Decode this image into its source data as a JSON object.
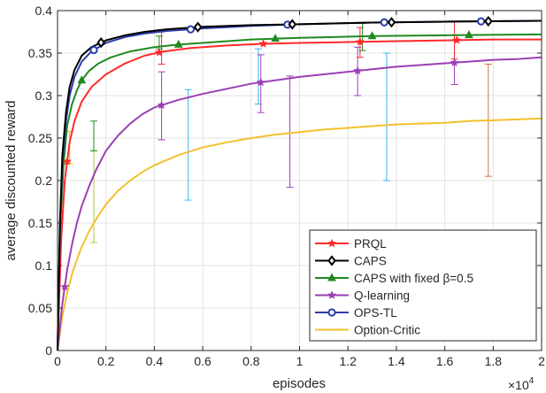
{
  "chart_data": {
    "type": "line",
    "title": "",
    "xlabel": "episodes",
    "ylabel": "average discounted reward",
    "x_multiplier_label": "×10",
    "x_multiplier_exp": "4",
    "xlim": [
      0,
      20000
    ],
    "ylim": [
      0,
      0.4
    ],
    "xticks": [
      0,
      2000,
      4000,
      6000,
      8000,
      10000,
      12000,
      14000,
      16000,
      18000,
      20000
    ],
    "xtick_labels": [
      "0",
      "0.2",
      "0.4",
      "0.6",
      "0.8",
      "1",
      "1.2",
      "1.4",
      "1.6",
      "1.8",
      "2"
    ],
    "yticks": [
      0,
      0.05,
      0.1,
      0.15,
      0.2,
      0.25,
      0.3,
      0.35,
      0.4
    ],
    "ytick_labels": [
      "0",
      "0.05",
      "0.1",
      "0.15",
      "0.2",
      "0.25",
      "0.3",
      "0.35",
      "0.4"
    ],
    "grid": true,
    "legend_position": "bottom-right",
    "series": [
      {
        "name": "PRQL",
        "color": "#ff2a2a",
        "marker": "star",
        "x": [
          0,
          150,
          300,
          500,
          700,
          1000,
          1400,
          2000,
          2800,
          3600,
          4400,
          5500,
          7000,
          8500,
          10000,
          12000,
          14000,
          16000,
          18000,
          20000
        ],
        "y": [
          0.0,
          0.13,
          0.2,
          0.245,
          0.27,
          0.293,
          0.31,
          0.325,
          0.338,
          0.347,
          0.352,
          0.356,
          0.359,
          0.361,
          0.362,
          0.363,
          0.364,
          0.365,
          0.366,
          0.366
        ],
        "marker_x": [
          400,
          4200,
          8500,
          12500,
          16500
        ],
        "errorbars": [
          {
            "x": 4300,
            "low": 0.337,
            "high": 0.375
          },
          {
            "x": 12500,
            "low": 0.345,
            "high": 0.38
          },
          {
            "x": 16400,
            "low": 0.343,
            "high": 0.387
          }
        ]
      },
      {
        "name": "CAPS",
        "color": "#000000",
        "marker": "diamond",
        "x": [
          0,
          100,
          200,
          350,
          500,
          700,
          1000,
          1400,
          2000,
          2800,
          3600,
          4500,
          6000,
          8000,
          10000,
          13000,
          16000,
          20000
        ],
        "y": [
          0.0,
          0.15,
          0.23,
          0.28,
          0.31,
          0.33,
          0.347,
          0.357,
          0.365,
          0.371,
          0.375,
          0.378,
          0.381,
          0.383,
          0.384,
          0.386,
          0.387,
          0.388
        ],
        "marker_x": [
          1800,
          5800,
          9700,
          13800,
          17800
        ],
        "errorbars": []
      },
      {
        "name": "CAPS with fixed β=0.5",
        "color": "#1f8a1f",
        "marker": "triangle",
        "x": [
          0,
          100,
          250,
          400,
          600,
          800,
          1000,
          1300,
          1700,
          2200,
          3000,
          4000,
          5000,
          6500,
          8000,
          10000,
          13000,
          16000,
          20000
        ],
        "y": [
          0.0,
          0.14,
          0.22,
          0.265,
          0.29,
          0.306,
          0.318,
          0.329,
          0.338,
          0.345,
          0.352,
          0.357,
          0.36,
          0.363,
          0.366,
          0.368,
          0.37,
          0.371,
          0.372
        ],
        "marker_x": [
          1000,
          5000,
          9000,
          13000,
          17000
        ],
        "errorbars": [
          {
            "x": 1500,
            "low": 0.235,
            "high": 0.27
          },
          {
            "x": 4200,
            "low": 0.355,
            "high": 0.37
          },
          {
            "x": 12600,
            "low": 0.353,
            "high": 0.385
          }
        ]
      },
      {
        "name": "Q-learning",
        "color": "#9b3fb5",
        "marker": "star",
        "x": [
          0,
          200,
          400,
          600,
          800,
          1000,
          1300,
          1600,
          2000,
          2500,
          3000,
          3500,
          4000,
          5000,
          6000,
          7000,
          8000,
          9000,
          10000,
          11000,
          12000,
          13000,
          14000,
          15000,
          16000,
          17000,
          18000,
          19000,
          20000
        ],
        "y": [
          0.0,
          0.055,
          0.095,
          0.125,
          0.15,
          0.17,
          0.193,
          0.213,
          0.235,
          0.253,
          0.267,
          0.278,
          0.286,
          0.295,
          0.302,
          0.308,
          0.314,
          0.318,
          0.322,
          0.325,
          0.328,
          0.331,
          0.334,
          0.336,
          0.338,
          0.34,
          0.342,
          0.343,
          0.345
        ],
        "marker_x": [
          300,
          4300,
          8400,
          12400,
          16400
        ],
        "errorbars": [
          {
            "x": 4300,
            "low": 0.248,
            "high": 0.328
          },
          {
            "x": 8400,
            "low": 0.28,
            "high": 0.348
          },
          {
            "x": 9600,
            "low": 0.192,
            "high": 0.323
          },
          {
            "x": 12400,
            "low": 0.3,
            "high": 0.357
          },
          {
            "x": 16400,
            "low": 0.313,
            "high": 0.365
          }
        ]
      },
      {
        "name": "OPS-TL",
        "color": "#2a3da8",
        "marker": "circle",
        "x": [
          0,
          100,
          200,
          350,
          500,
          700,
          1000,
          1400,
          2000,
          2800,
          3600,
          4500,
          6000,
          8000,
          10000,
          13000,
          16000,
          20000
        ],
        "y": [
          0.0,
          0.14,
          0.22,
          0.27,
          0.3,
          0.322,
          0.34,
          0.352,
          0.362,
          0.369,
          0.373,
          0.376,
          0.379,
          0.382,
          0.384,
          0.386,
          0.387,
          0.388
        ],
        "marker_x": [
          1500,
          5500,
          9500,
          13500,
          17500
        ],
        "errorbars": []
      },
      {
        "name": "Option-Critic",
        "color": "#f2c12e",
        "marker": "none",
        "x": [
          0,
          200,
          400,
          600,
          800,
          1000,
          1300,
          1600,
          2000,
          2500,
          3000,
          3500,
          4000,
          5000,
          6000,
          7000,
          8000,
          9000,
          10000,
          11000,
          12000,
          13000,
          14000,
          15000,
          16000,
          17000,
          18000,
          19000,
          20000
        ],
        "y": [
          0.0,
          0.04,
          0.068,
          0.09,
          0.107,
          0.122,
          0.14,
          0.155,
          0.172,
          0.188,
          0.2,
          0.21,
          0.218,
          0.23,
          0.239,
          0.245,
          0.25,
          0.254,
          0.257,
          0.26,
          0.262,
          0.264,
          0.266,
          0.267,
          0.268,
          0.27,
          0.271,
          0.272,
          0.273
        ],
        "marker_x": [],
        "errorbars": []
      }
    ],
    "extra_errorbars": [
      {
        "color": "#ffb000",
        "x": 500,
        "low": 0.22,
        "high": 0.258
      },
      {
        "color": "#b5c43a",
        "x": 1500,
        "low": 0.127,
        "high": 0.235
      },
      {
        "color": "#33b7f0",
        "x": 5400,
        "low": 0.177,
        "high": 0.307
      },
      {
        "color": "#33b7f0",
        "x": 13600,
        "low": 0.2,
        "high": 0.35
      },
      {
        "color": "#d2744a",
        "x": 17800,
        "low": 0.205,
        "high": 0.337
      },
      {
        "color": "#33b7f0",
        "x": 8300,
        "low": 0.29,
        "high": 0.355
      }
    ]
  }
}
